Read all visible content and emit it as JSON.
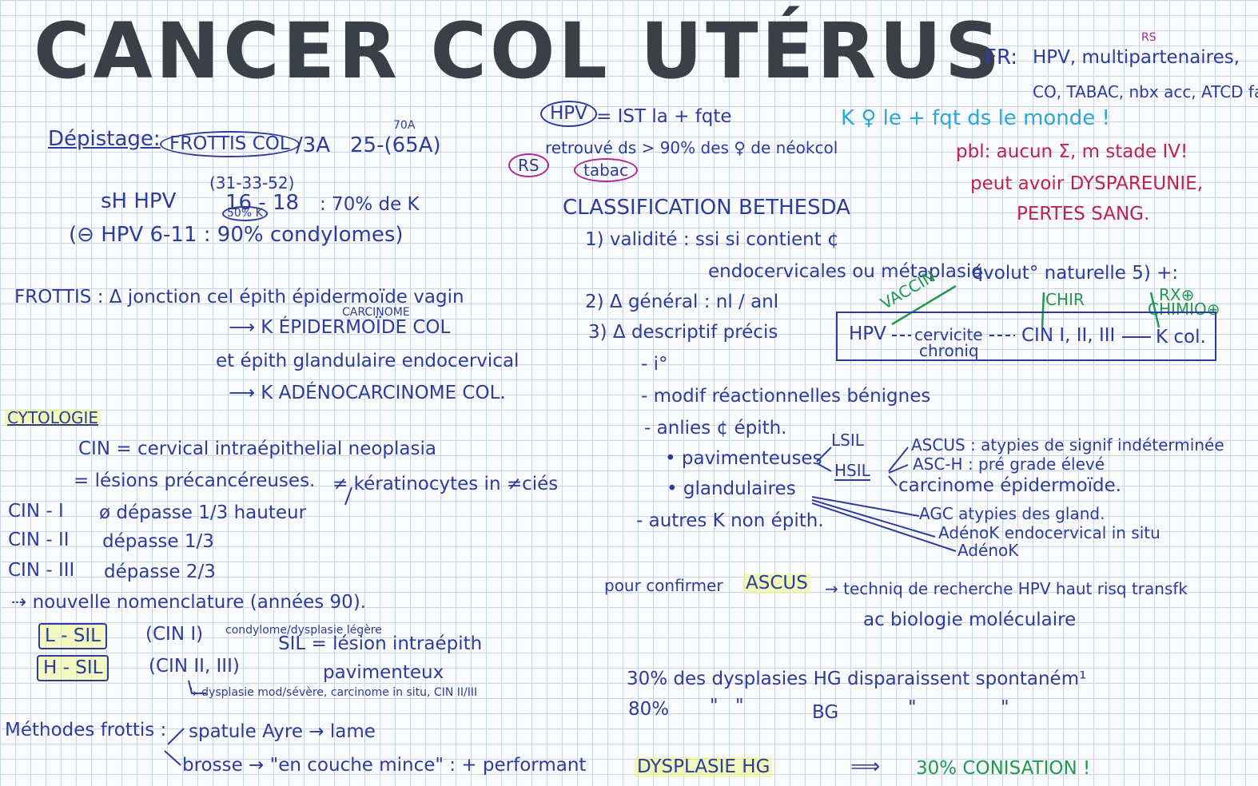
{
  "title": "CANCER COL UTÉRUS",
  "fr": {
    "label": "FR:",
    "rs_superscript": "RS",
    "line1": "HPV, multipartenaires,",
    "line2": "CO, TABAC, nbx acc, ATCD fam"
  },
  "depistage": {
    "label": "Dépistage:",
    "frottis": "FROTTIS COL",
    "interval": "/3A",
    "ages": "25-(65A)",
    "age_sup": "70A"
  },
  "hpv_block": {
    "hpv_oval": "HPV",
    "line1": "= IST la + fqte",
    "line2": "retrouvé ds > 90% des ♀ de néokcol",
    "rs_oval": "RS",
    "tabac_oval": "tabac"
  },
  "k_monde": "K ♀ le + fqt ds le monde !",
  "probleme": {
    "line1": "pbl: aucun Σ, m stade IV!",
    "line2": "peut avoir DYSPAREUNIE,",
    "line3": "PERTES SANG."
  },
  "hpv_types": {
    "line1_prefix": "sH HPV",
    "line1_types": "16 - 18",
    "line1_sup": "(31-33-52)",
    "line1_sub": "50% K",
    "line1_suffix": ": 70% de K",
    "line2": "(⊖ HPV 6-11 : 90% condylomes)"
  },
  "frottis_section": {
    "line1": "FROTTIS : Δ jonction cel épith épidermoïde vagin",
    "carcinome_sup": "CARCINOME",
    "line2": "⟶ K ÉPIDERMOÏDE COL",
    "line3": "et épith glandulaire endocervical",
    "line4": "⟶ K ADÉNOCARCINOME COL."
  },
  "cytologie": {
    "heading": "CYTOLOGIE",
    "cin_def": "CIN = cervical intraépithelial neoplasia",
    "lesions": "= lésions précancéreuses.",
    "keratino": "≠ kératinocytes in ≠ciés",
    "cin1_label": "CIN - I",
    "cin1_text": "ø dépasse 1/3 hauteur",
    "cin2_label": "CIN - II",
    "cin2_text": "dépasse 1/3",
    "cin3_label": "CIN - III",
    "cin3_text": "dépasse 2/3",
    "nomenclature": "⇢ nouvelle nomenclature (années 90).",
    "lsil_box": "L - SIL",
    "lsil_text": "(CIN I)",
    "lsil_note": "condylome/dysplasie légère",
    "sil_def": "SIL = lésion intraépith",
    "hsil_box": "H - SIL",
    "hsil_text": "(CIN II, III)",
    "pavimenteux": "pavimenteux",
    "hsil_note": "↳ dysplasie mod/sévère, carcinome in situ, CIN II/III"
  },
  "methodes": {
    "label": "Méthodes frottis :",
    "line1": "spatule Ayre → lame",
    "line2": "brosse → \"en couche mince\" : + performant"
  },
  "bethesda": {
    "heading": "CLASSIFICATION BETHESDA",
    "item1": "1) validité : ssi si contient ¢",
    "item1b": "endocervicales ou métaplasiq",
    "item2": "2) Δ général : nl / anl",
    "item3": "3) Δ descriptif précis",
    "sub_io": "- i°",
    "sub_modif": "- modif réactionnelles bénignes",
    "sub_anlies": "- anlies ¢ épith.",
    "pavimenteuses": "• pavimenteuses",
    "glandulaires": "• glandulaires",
    "sub_autres": "- autres K non épith.",
    "lsil": "LSIL",
    "hsil": "HSIL",
    "ascus": "ASCUS : atypies de signif indéterminée",
    "asch": "ASC-H : pré grade élevé",
    "carcinome_epid": "carcinome épidermoïde.",
    "agc": "AGC atypies des gland.",
    "adenok_situ": "AdénoK endocervical in situ",
    "adenok": "AdénoK"
  },
  "evolution": {
    "heading": "évolut° naturelle 5) +:",
    "vaccin": "VACCIN",
    "chir": "CHIR",
    "rx": "RX⊕",
    "chimio": "CHIMIO⊕",
    "hpv": "HPV",
    "cervicite": "cervicite",
    "chronique": "chroniq",
    "cin": "CIN I, II, III",
    "kcol": "K col."
  },
  "ascus_confirm": {
    "line1_a": "pour confirmer",
    "line1_ascus": "ASCUS",
    "line1_b": "→ techniq de recherche HPV haut risq transfk",
    "line2": "ac biologie moléculaire"
  },
  "dysplasie": {
    "line1": "30% des dysplasies HG disparaissent spontaném¹",
    "line2_pct": "80%",
    "line2_ditto1": "\"",
    "line2_ditto2": "\"",
    "line2_bg": "BG",
    "line2_ditto3": "\"",
    "line2_ditto4": "\"",
    "final_label": "DYSPLASIE HG",
    "final_arrow": "⟹",
    "final_text": "30% CONISATION !"
  }
}
